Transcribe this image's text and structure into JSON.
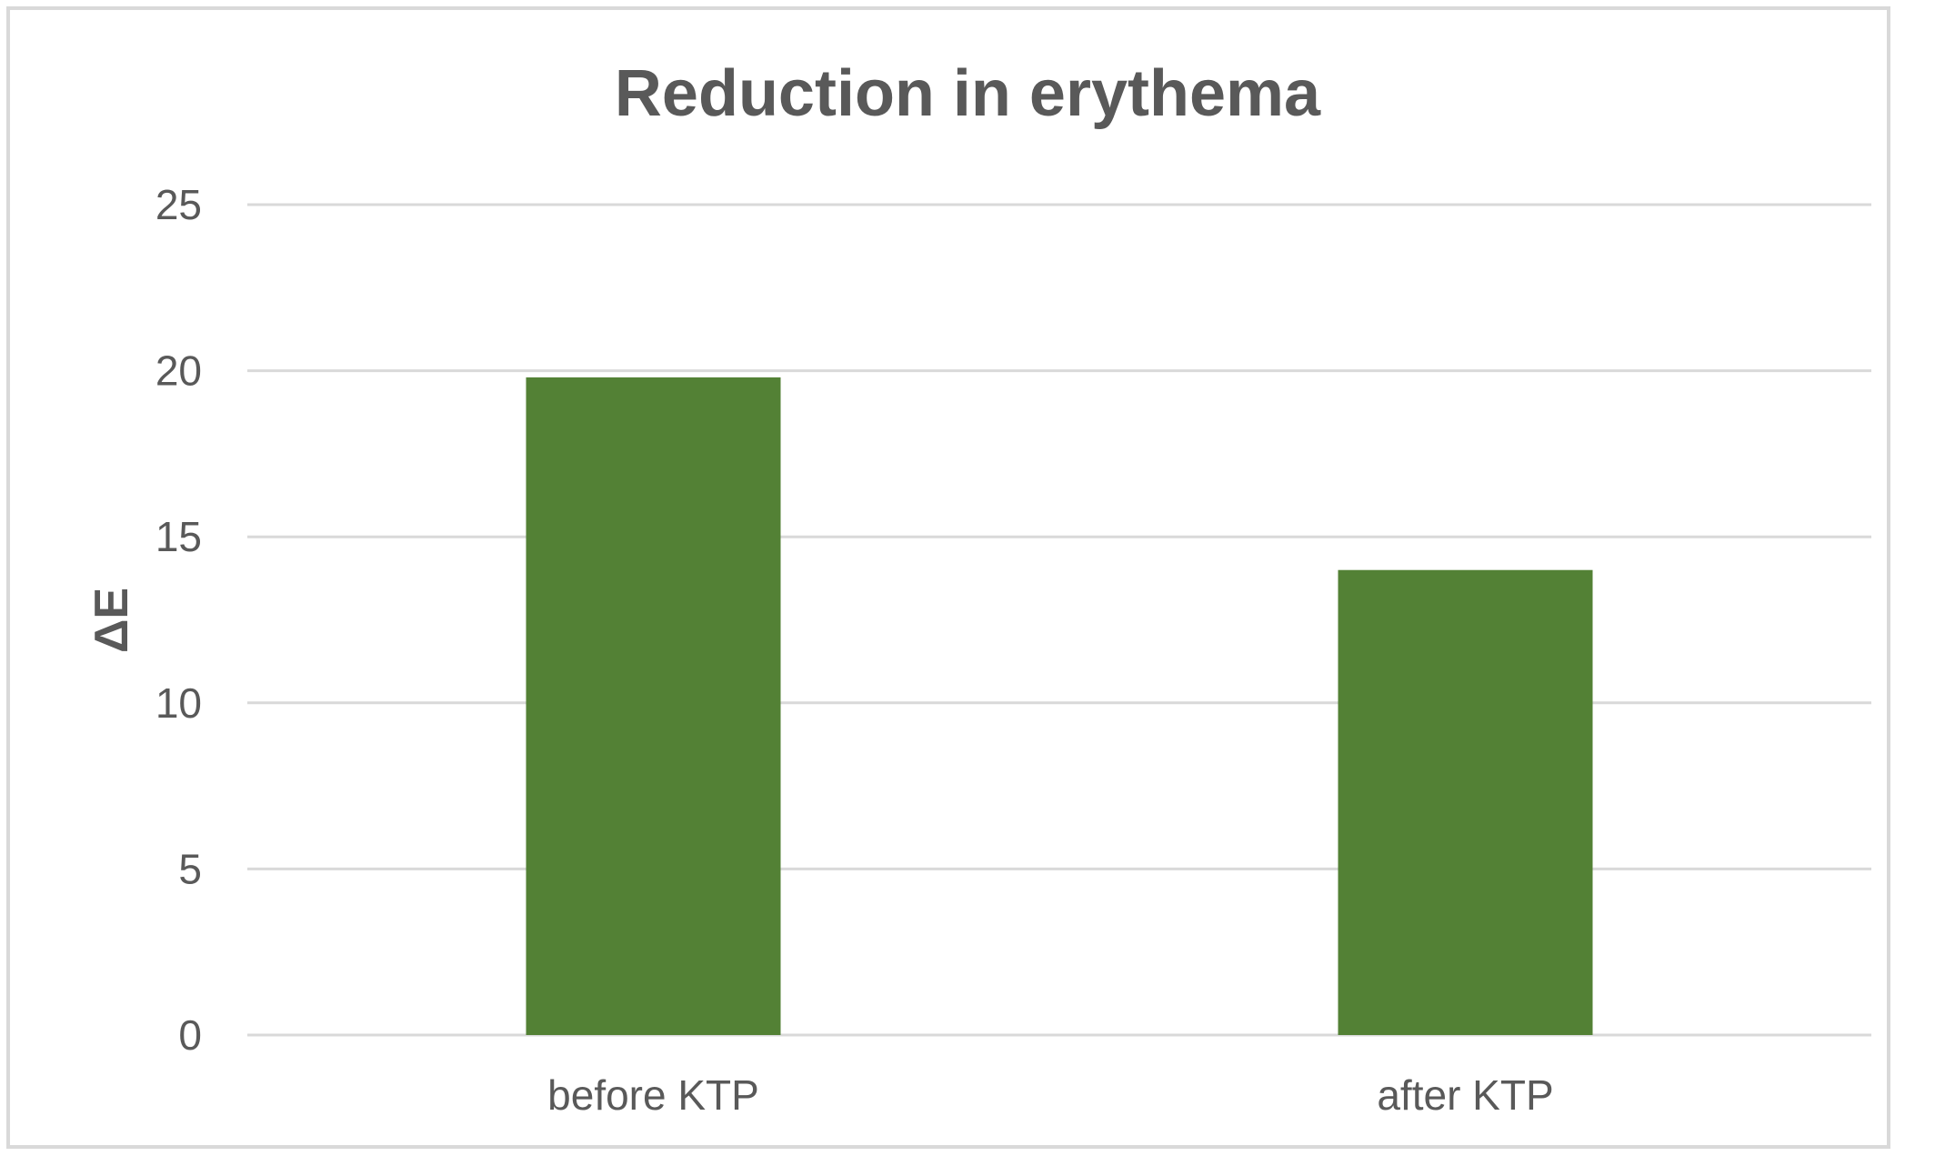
{
  "chart_data": {
    "type": "bar",
    "title": "Reduction in erythema",
    "xlabel": "",
    "ylabel": "ΔE",
    "categories": [
      "before KTP",
      "after KTP"
    ],
    "values": [
      19.8,
      14.0
    ],
    "ylim": [
      0,
      25
    ],
    "yticks": [
      "0",
      "5",
      "10",
      "15",
      "20",
      "25"
    ],
    "grid": true,
    "legend": "none",
    "bar_color": "#538135",
    "grid_color": "#d9d9d9",
    "text_color": "#595959"
  }
}
